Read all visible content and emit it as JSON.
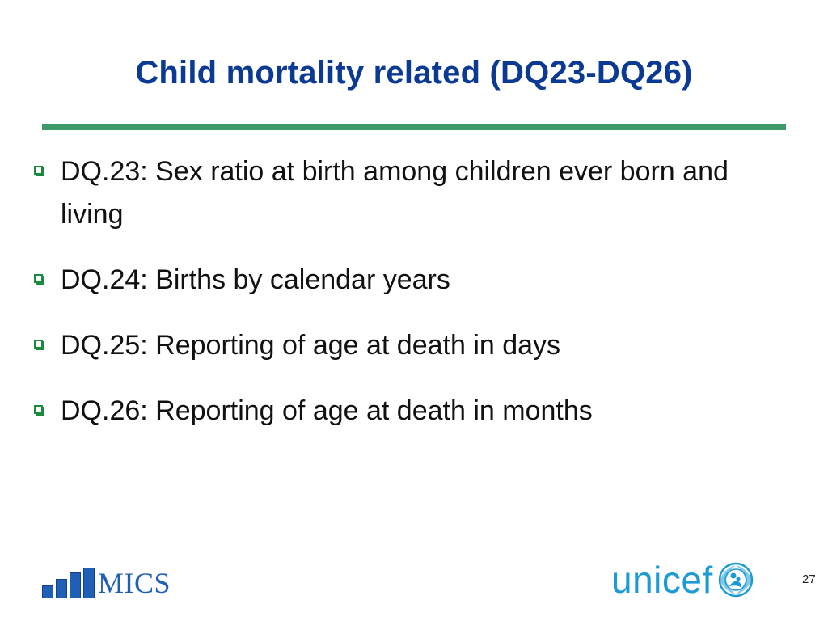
{
  "slide": {
    "title": "Child mortality related (DQ23-DQ26)",
    "bullets": [
      "DQ.23: Sex ratio at birth among children ever born and living",
      "DQ.24: Births by calendar years",
      "DQ.25: Reporting of age at death in days",
      "DQ.26: Reporting of age at death in months"
    ],
    "footer": {
      "mics_text": "MICS",
      "unicef_text": "unicef",
      "page_number": "27"
    },
    "colors": {
      "title": "#0b3a94",
      "divider": "#3f9a6a",
      "bullet_marker": "#1a8a3c",
      "mics": "#1f5fb6",
      "unicef": "#1c9ad6"
    },
    "icons": {
      "bullet": "hollow-square-bullet-icon",
      "unicef_emblem": "unicef-emblem-icon",
      "mics_bars": "mics-bars-icon"
    }
  }
}
